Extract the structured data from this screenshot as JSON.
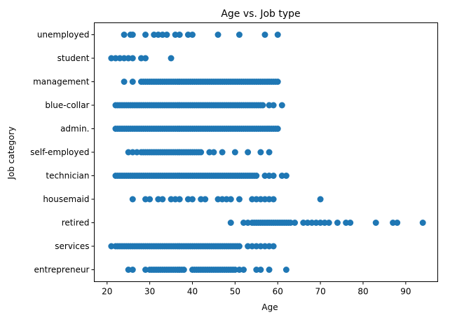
{
  "chart_data": {
    "type": "scatter",
    "title": "Age vs. Job type",
    "xlabel": "Age",
    "ylabel": "Job category",
    "xlim": [
      17,
      97.5
    ],
    "xticks": [
      20,
      30,
      40,
      50,
      60,
      70,
      80,
      90
    ],
    "grid": false,
    "legend": "none",
    "marker_color": "#1f77b4",
    "categories": [
      "entrepreneur",
      "services",
      "retired",
      "housemaid",
      "technician",
      "self-employed",
      "admin.",
      "blue-collar",
      "management",
      "student",
      "unemployed"
    ],
    "points": {
      "unemployed": [
        24,
        25.5,
        26,
        29,
        31,
        32,
        33,
        34,
        36,
        37,
        39,
        40,
        46,
        51,
        57,
        60
      ],
      "student": [
        21,
        22,
        23,
        24,
        25,
        26,
        28,
        29,
        35
      ],
      "management": [
        24,
        26,
        28,
        28.5,
        29,
        29.5,
        30,
        30.5,
        31,
        31.5,
        32,
        32.5,
        33,
        33.5,
        34,
        34.5,
        35,
        35.5,
        36,
        36.5,
        37,
        37.5,
        38,
        38.5,
        39,
        39.5,
        40,
        40.5,
        41,
        41.5,
        42,
        42.5,
        43,
        43.5,
        44,
        44.5,
        45,
        45.5,
        46,
        46.5,
        47,
        47.5,
        48,
        48.5,
        49,
        49.5,
        50,
        50.5,
        51,
        51.5,
        52,
        52.5,
        53,
        53.5,
        54,
        54.5,
        55,
        55.5,
        56,
        56.5,
        57,
        57.5,
        58,
        58.5,
        59,
        59.5,
        60
      ],
      "blue-collar": [
        22,
        22.5,
        23,
        23.5,
        24,
        24.5,
        25,
        25.5,
        26,
        26.5,
        27,
        27.5,
        28,
        28.5,
        29,
        29.5,
        30,
        30.5,
        31,
        31.5,
        32,
        32.5,
        33,
        33.5,
        34,
        34.5,
        35,
        35.5,
        36,
        36.5,
        37,
        37.5,
        38,
        38.5,
        39,
        39.5,
        40,
        40.5,
        41,
        41.5,
        42,
        42.5,
        43,
        43.5,
        44,
        44.5,
        45,
        45.5,
        46,
        46.5,
        47,
        47.5,
        48,
        48.5,
        49,
        49.5,
        50,
        50.5,
        51,
        51.5,
        52,
        52.5,
        53,
        53.5,
        54,
        54.5,
        55,
        55.5,
        56,
        56.5,
        58,
        59,
        61
      ],
      "admin.": [
        22,
        22.5,
        23,
        23.5,
        24,
        24.5,
        25,
        25.5,
        26,
        26.5,
        27,
        27.5,
        28,
        28.5,
        29,
        29.5,
        30,
        30.5,
        31,
        31.5,
        32,
        32.5,
        33,
        33.5,
        34,
        34.5,
        35,
        35.5,
        36,
        36.5,
        37,
        37.5,
        38,
        38.5,
        39,
        39.5,
        40,
        40.5,
        41,
        41.5,
        42,
        42.5,
        43,
        43.5,
        44,
        44.5,
        45,
        45.5,
        46,
        46.5,
        47,
        47.5,
        48,
        48.5,
        49,
        49.5,
        50,
        50.5,
        51,
        51.5,
        52,
        52.5,
        53,
        53.5,
        54,
        54.5,
        55,
        55.5,
        56,
        56.5,
        57,
        57.5,
        58,
        58.5,
        59,
        59.5,
        60
      ],
      "self-employed": [
        25,
        26,
        27,
        28,
        28.5,
        29,
        29.5,
        30,
        30.5,
        31,
        31.5,
        32,
        32.5,
        33,
        33.5,
        34,
        34.5,
        35,
        35.5,
        36,
        36.5,
        37,
        37.5,
        38,
        38.5,
        39,
        39.5,
        40,
        40.5,
        41,
        41.5,
        42,
        44,
        45,
        47,
        50,
        53,
        56,
        58
      ],
      "technician": [
        22,
        22.5,
        23,
        23.5,
        24,
        24.5,
        25,
        25.5,
        26,
        26.5,
        27,
        27.5,
        28,
        28.5,
        29,
        29.5,
        30,
        30.5,
        31,
        31.5,
        32,
        32.5,
        33,
        33.5,
        34,
        34.5,
        35,
        35.5,
        36,
        36.5,
        37,
        37.5,
        38,
        38.5,
        39,
        39.5,
        40,
        40.5,
        41,
        41.5,
        42,
        42.5,
        43,
        43.5,
        44,
        44.5,
        45,
        45.5,
        46,
        46.5,
        47,
        47.5,
        48,
        48.5,
        49,
        49.5,
        50,
        50.5,
        51,
        51.5,
        52,
        52.5,
        53,
        53.5,
        54,
        54.5,
        55,
        57,
        58,
        59,
        61,
        62
      ],
      "housemaid": [
        26,
        29,
        30,
        32,
        33,
        35,
        36,
        37,
        39,
        40,
        42,
        43,
        46,
        47,
        48,
        49,
        51,
        54,
        55,
        56,
        57,
        58,
        59,
        70
      ],
      "retired": [
        49,
        52,
        53,
        54,
        54.5,
        55,
        55.5,
        56,
        56.5,
        57,
        57.5,
        58,
        58.5,
        59,
        59.5,
        60,
        60.5,
        61,
        61.5,
        62,
        62.5,
        63,
        64,
        66,
        67,
        68,
        69,
        70,
        71,
        72,
        74,
        76,
        77,
        83,
        87,
        88,
        94
      ],
      "services": [
        21,
        22,
        22.5,
        23,
        23.5,
        24,
        24.5,
        25,
        25.5,
        26,
        26.5,
        27,
        27.5,
        28,
        28.5,
        29,
        29.5,
        30,
        30.5,
        31,
        31.5,
        32,
        32.5,
        33,
        33.5,
        34,
        34.5,
        35,
        35.5,
        36,
        36.5,
        37,
        37.5,
        38,
        38.5,
        39,
        39.5,
        40,
        40.5,
        41,
        41.5,
        42,
        42.5,
        43,
        43.5,
        44,
        44.5,
        45,
        45.5,
        46,
        46.5,
        47,
        47.5,
        48,
        48.5,
        49,
        49.5,
        50,
        50.5,
        51,
        53,
        54,
        55,
        56,
        57,
        58,
        59
      ],
      "entrepreneur": [
        25,
        26,
        29,
        30,
        30.5,
        31,
        31.5,
        32,
        32.5,
        33,
        33.5,
        34,
        34.5,
        35,
        35.5,
        36,
        36.5,
        37,
        37.5,
        38,
        40,
        40.5,
        41,
        41.5,
        42,
        42.5,
        43,
        43.5,
        44,
        44.5,
        45,
        45.5,
        46,
        46.5,
        47,
        47.5,
        48,
        48.5,
        49,
        49.5,
        50,
        51,
        52,
        55,
        56,
        58,
        62
      ]
    }
  }
}
